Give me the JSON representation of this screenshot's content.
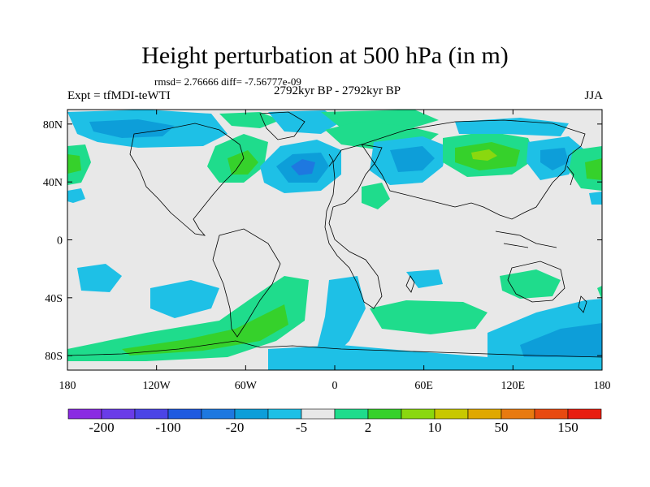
{
  "title": "Height perturbation at 500 hPa (in m)",
  "stats": "rmsd= 2.76666  diff= -7.56777e-09",
  "left_subtitle": "Expt = tfMDI-teWTI",
  "center_subtitle": "2792kyr BP - 2792kyr BP",
  "right_subtitle": "JJA",
  "y_ticks": [
    {
      "label": "80N",
      "lat": 80
    },
    {
      "label": "40N",
      "lat": 40
    },
    {
      "label": "0",
      "lat": 0
    },
    {
      "label": "40S",
      "lat": -40
    },
    {
      "label": "80S",
      "lat": -80
    }
  ],
  "x_ticks": [
    {
      "label": "180",
      "lon": -180
    },
    {
      "label": "120W",
      "lon": -120
    },
    {
      "label": "60W",
      "lon": -60
    },
    {
      "label": "0",
      "lon": 0
    },
    {
      "label": "60E",
      "lon": 60
    },
    {
      "label": "120E",
      "lon": 120
    },
    {
      "label": "180",
      "lon": 180
    }
  ],
  "colorbar": {
    "colors": [
      "#8a2be2",
      "#6a3ce8",
      "#4b44e6",
      "#1f5ae0",
      "#1e78e0",
      "#0d9ed9",
      "#1ec0e6",
      "#e8e8e8",
      "#1fdc8c",
      "#36d12b",
      "#8ad80f",
      "#c8c800",
      "#e0a800",
      "#e87a10",
      "#e84a10",
      "#e81e10"
    ],
    "labels": [
      {
        "text": "-200",
        "index": 1
      },
      {
        "text": "-100",
        "index": 3
      },
      {
        "text": "-20",
        "index": 5
      },
      {
        "text": "-5",
        "index": 7
      },
      {
        "text": "2",
        "index": 9
      },
      {
        "text": "10",
        "index": 11
      },
      {
        "text": "50",
        "index": 13
      },
      {
        "text": "150",
        "index": 15
      }
    ]
  },
  "colors": {
    "background": "#e8e8e8",
    "light_blue": "#1ec0e6",
    "mid_blue": "#0d9ed9",
    "blue": "#1e78e0",
    "green": "#1fdc8c",
    "bright_green": "#36d12b",
    "yellow_green": "#8ad80f"
  }
}
